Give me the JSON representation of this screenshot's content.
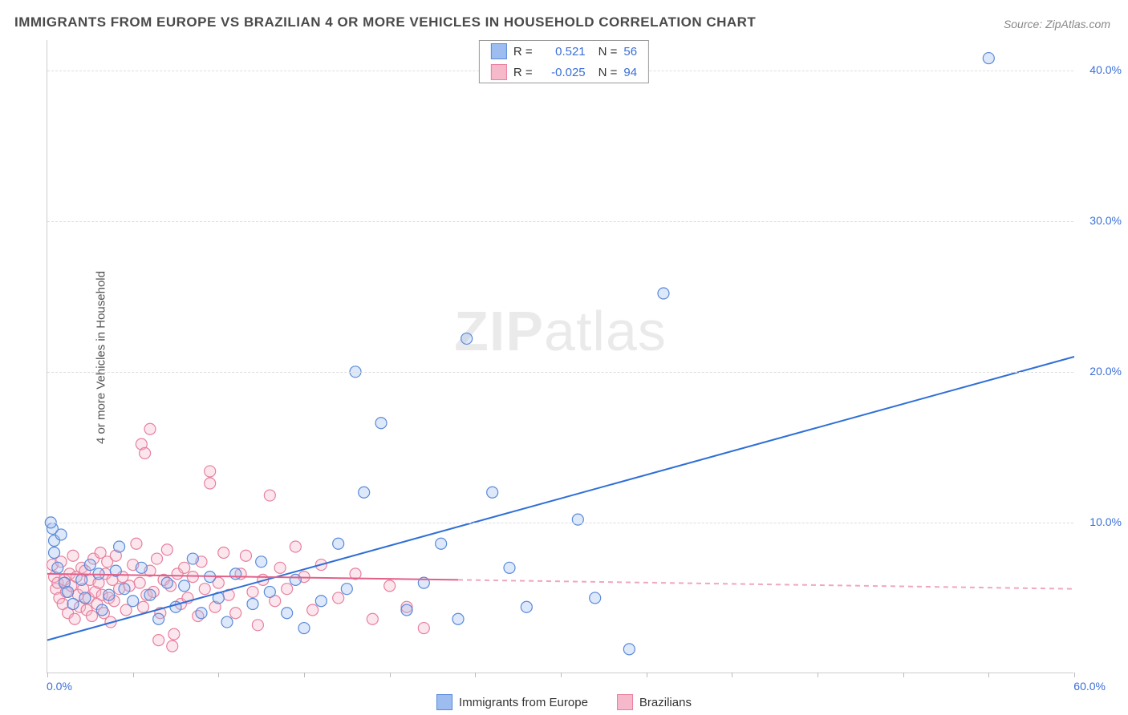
{
  "title": "IMMIGRANTS FROM EUROPE VS BRAZILIAN 4 OR MORE VEHICLES IN HOUSEHOLD CORRELATION CHART",
  "source": "Source: ZipAtlas.com",
  "ylabel": "4 or more Vehicles in Household",
  "watermark_bold": "ZIP",
  "watermark_rest": "atlas",
  "chart": {
    "type": "scatter",
    "xlim": [
      0,
      60
    ],
    "ylim": [
      0,
      42
    ],
    "x_corner_label": "0.0%",
    "x_max_label": "60.0%",
    "y_ticks": [
      10,
      20,
      30,
      40
    ],
    "y_tick_labels": [
      "10.0%",
      "20.0%",
      "30.0%",
      "40.0%"
    ],
    "x_tick_positions": [
      0,
      5,
      10,
      15,
      20,
      25,
      30,
      35,
      40,
      45,
      50,
      55,
      60
    ],
    "background_color": "#ffffff",
    "grid_color": "#dddddd",
    "axis_color": "#cccccc",
    "tick_label_color": "#3b6fd6",
    "marker_radius": 7,
    "marker_stroke_width": 1.2,
    "marker_fill_opacity": 0.35,
    "series": [
      {
        "name": "Immigrants from Europe",
        "color_fill": "#9dbdf0",
        "color_stroke": "#5a8ad8",
        "R": "0.521",
        "N": "56",
        "regression": {
          "x1": 0,
          "y1": 2.2,
          "x2": 60,
          "y2": 21.0,
          "solid_to_x": 60,
          "stroke": "#2f6fd6",
          "width": 2
        },
        "points": [
          [
            0.3,
            9.6
          ],
          [
            0.4,
            8.8
          ],
          [
            0.4,
            8.0
          ],
          [
            0.6,
            7.0
          ],
          [
            0.8,
            9.2
          ],
          [
            1.0,
            6.0
          ],
          [
            1.2,
            5.4
          ],
          [
            1.5,
            4.6
          ],
          [
            2.0,
            6.2
          ],
          [
            2.2,
            5.0
          ],
          [
            2.5,
            7.2
          ],
          [
            3.0,
            6.6
          ],
          [
            3.2,
            4.2
          ],
          [
            3.6,
            5.2
          ],
          [
            4.0,
            6.8
          ],
          [
            4.2,
            8.4
          ],
          [
            4.5,
            5.6
          ],
          [
            5.0,
            4.8
          ],
          [
            5.5,
            7.0
          ],
          [
            6.0,
            5.2
          ],
          [
            6.5,
            3.6
          ],
          [
            7.0,
            6.0
          ],
          [
            7.5,
            4.4
          ],
          [
            8.0,
            5.8
          ],
          [
            8.5,
            7.6
          ],
          [
            9.0,
            4.0
          ],
          [
            9.5,
            6.4
          ],
          [
            10.0,
            5.0
          ],
          [
            10.5,
            3.4
          ],
          [
            11.0,
            6.6
          ],
          [
            12.0,
            4.6
          ],
          [
            12.5,
            7.4
          ],
          [
            13.0,
            5.4
          ],
          [
            14.0,
            4.0
          ],
          [
            14.5,
            6.2
          ],
          [
            15.0,
            3.0
          ],
          [
            16.0,
            4.8
          ],
          [
            17.0,
            8.6
          ],
          [
            17.5,
            5.6
          ],
          [
            18.0,
            20.0
          ],
          [
            18.5,
            12.0
          ],
          [
            19.5,
            16.6
          ],
          [
            21.0,
            4.2
          ],
          [
            22.0,
            6.0
          ],
          [
            23.0,
            8.6
          ],
          [
            24.0,
            3.6
          ],
          [
            24.5,
            22.2
          ],
          [
            26.0,
            12.0
          ],
          [
            27.0,
            7.0
          ],
          [
            28.0,
            4.4
          ],
          [
            31.0,
            10.2
          ],
          [
            32.0,
            5.0
          ],
          [
            34.0,
            1.6
          ],
          [
            36.0,
            25.2
          ],
          [
            55.0,
            40.8
          ],
          [
            0.2,
            10.0
          ]
        ]
      },
      {
        "name": "Brazilians",
        "color_fill": "#f6b8cb",
        "color_stroke": "#e7809e",
        "R": "-0.025",
        "N": "94",
        "regression": {
          "x1": 0,
          "y1": 6.6,
          "x2": 60,
          "y2": 5.6,
          "solid_to_x": 24,
          "stroke": "#e35f88",
          "width": 2
        },
        "points": [
          [
            0.3,
            7.2
          ],
          [
            0.4,
            6.4
          ],
          [
            0.5,
            5.6
          ],
          [
            0.6,
            6.0
          ],
          [
            0.7,
            5.0
          ],
          [
            0.8,
            7.4
          ],
          [
            0.9,
            4.6
          ],
          [
            1.0,
            6.2
          ],
          [
            1.1,
            5.4
          ],
          [
            1.2,
            4.0
          ],
          [
            1.3,
            6.6
          ],
          [
            1.4,
            5.8
          ],
          [
            1.5,
            7.8
          ],
          [
            1.6,
            3.6
          ],
          [
            1.7,
            6.4
          ],
          [
            1.8,
            5.2
          ],
          [
            1.9,
            4.4
          ],
          [
            2.0,
            7.0
          ],
          [
            2.1,
            5.6
          ],
          [
            2.2,
            6.8
          ],
          [
            2.3,
            4.2
          ],
          [
            2.4,
            5.0
          ],
          [
            2.5,
            6.2
          ],
          [
            2.6,
            3.8
          ],
          [
            2.7,
            7.6
          ],
          [
            2.8,
            5.4
          ],
          [
            2.9,
            4.6
          ],
          [
            3.0,
            6.0
          ],
          [
            3.1,
            8.0
          ],
          [
            3.2,
            5.2
          ],
          [
            3.3,
            4.0
          ],
          [
            3.4,
            6.6
          ],
          [
            3.5,
            7.4
          ],
          [
            3.6,
            5.0
          ],
          [
            3.7,
            3.4
          ],
          [
            3.8,
            6.2
          ],
          [
            3.9,
            4.8
          ],
          [
            4.0,
            7.8
          ],
          [
            4.2,
            5.6
          ],
          [
            4.4,
            6.4
          ],
          [
            4.6,
            4.2
          ],
          [
            4.8,
            5.8
          ],
          [
            5.0,
            7.2
          ],
          [
            5.2,
            8.6
          ],
          [
            5.4,
            6.0
          ],
          [
            5.6,
            4.4
          ],
          [
            5.8,
            5.2
          ],
          [
            5.5,
            15.2
          ],
          [
            5.7,
            14.6
          ],
          [
            6.0,
            6.8
          ],
          [
            6.2,
            5.4
          ],
          [
            6.4,
            7.6
          ],
          [
            6.6,
            4.0
          ],
          [
            6.8,
            6.2
          ],
          [
            7.0,
            8.2
          ],
          [
            7.2,
            5.8
          ],
          [
            7.4,
            2.6
          ],
          [
            7.6,
            6.6
          ],
          [
            7.8,
            4.6
          ],
          [
            8.0,
            7.0
          ],
          [
            6.0,
            16.2
          ],
          [
            8.2,
            5.0
          ],
          [
            8.5,
            6.4
          ],
          [
            8.8,
            3.8
          ],
          [
            9.0,
            7.4
          ],
          [
            9.2,
            5.6
          ],
          [
            9.5,
            12.6
          ],
          [
            9.8,
            4.4
          ],
          [
            10.0,
            6.0
          ],
          [
            10.3,
            8.0
          ],
          [
            10.6,
            5.2
          ],
          [
            9.5,
            13.4
          ],
          [
            11.0,
            4.0
          ],
          [
            11.3,
            6.6
          ],
          [
            11.6,
            7.8
          ],
          [
            12.0,
            5.4
          ],
          [
            12.3,
            3.2
          ],
          [
            12.6,
            6.2
          ],
          [
            13.0,
            11.8
          ],
          [
            13.3,
            4.8
          ],
          [
            13.6,
            7.0
          ],
          [
            14.0,
            5.6
          ],
          [
            14.5,
            8.4
          ],
          [
            15.0,
            6.4
          ],
          [
            15.5,
            4.2
          ],
          [
            16.0,
            7.2
          ],
          [
            17.0,
            5.0
          ],
          [
            18.0,
            6.6
          ],
          [
            19.0,
            3.6
          ],
          [
            20.0,
            5.8
          ],
          [
            21.0,
            4.4
          ],
          [
            22.0,
            3.0
          ],
          [
            6.5,
            2.2
          ],
          [
            7.3,
            1.8
          ]
        ]
      }
    ]
  },
  "legend_top": {
    "R_label": "R =",
    "N_label": "N ="
  },
  "legend_bottom": [
    {
      "label": "Immigrants from Europe",
      "fill": "#9dbdf0",
      "stroke": "#5a8ad8"
    },
    {
      "label": "Brazilians",
      "fill": "#f6b8cb",
      "stroke": "#e7809e"
    }
  ]
}
